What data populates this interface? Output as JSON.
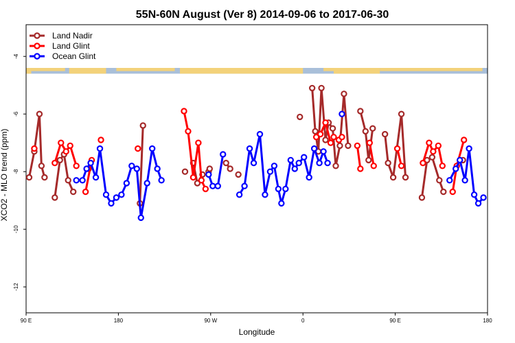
{
  "chart_data": {
    "type": "line",
    "title": "55N-60N August (Ver 8)   2014-09-06 to 2017-06-30",
    "xlabel": "Longitude",
    "ylabel": "XCO2 - MLO trend (ppm)",
    "xlim": [
      0,
      450
    ],
    "ylim": [
      -12.9,
      -2.9
    ],
    "x_ticks": [
      {
        "value": 0,
        "label": "90 E"
      },
      {
        "value": 90,
        "label": "180"
      },
      {
        "value": 180,
        "label": "90 W"
      },
      {
        "value": 270,
        "label": "0"
      },
      {
        "value": 360,
        "label": "90 E"
      },
      {
        "value": 450,
        "label": "180"
      }
    ],
    "y_ticks": [
      -12,
      -10,
      -8,
      -6,
      -4
    ],
    "legend_position": "top-left",
    "map_strip": {
      "y_range": [
        -4.4,
        -4.6
      ],
      "land_color": "#f3d27a",
      "ocean_color": "#a9bfd9"
    },
    "series": [
      {
        "name": "Land Nadir",
        "color": "#a52a2a",
        "segments": [
          [
            [
              3,
              -8.2
            ],
            [
              8,
              -7.3
            ],
            [
              13,
              -6.0
            ],
            [
              15,
              -7.8
            ],
            [
              18,
              -8.2
            ]
          ],
          [
            [
              28,
              -8.9
            ],
            [
              33,
              -7.6
            ],
            [
              37,
              -7.4
            ],
            [
              41,
              -8.3
            ],
            [
              46,
              -8.7
            ]
          ],
          [
            [
              61,
              -7.9
            ]
          ],
          [
            [
              111,
              -9.1
            ],
            [
              114,
              -6.4
            ]
          ],
          [
            [
              155,
              -8.0
            ]
          ],
          [
            [
              163,
              -7.7
            ],
            [
              167,
              -8.4
            ],
            [
              172,
              -8.1
            ]
          ],
          [
            [
              178,
              -8.0
            ],
            [
              179,
              -7.9
            ]
          ],
          [
            [
              195,
              -7.7
            ],
            [
              199,
              -7.9
            ]
          ],
          [
            [
              207,
              -8.1
            ]
          ],
          [
            [
              267,
              -6.1
            ]
          ],
          [
            [
              279,
              -5.1
            ],
            [
              282,
              -6.6
            ],
            [
              285,
              -7.3
            ],
            [
              288,
              -5.1
            ],
            [
              292,
              -6.9
            ],
            [
              295,
              -6.3
            ],
            [
              299,
              -6.5
            ],
            [
              302,
              -7.8
            ],
            [
              306,
              -7.1
            ],
            [
              310,
              -5.3
            ],
            [
              314,
              -7.1
            ]
          ],
          [
            [
              326,
              -5.9
            ],
            [
              331,
              -6.6
            ],
            [
              334,
              -7.6
            ],
            [
              338,
              -6.5
            ]
          ],
          [
            [
              350,
              -6.7
            ],
            [
              353,
              -7.7
            ],
            [
              358,
              -8.2
            ],
            [
              366,
              -6.0
            ],
            [
              370,
              -8.2
            ]
          ],
          [
            [
              386,
              -8.9
            ],
            [
              391,
              -7.6
            ],
            [
              396,
              -7.5
            ],
            [
              403,
              -8.3
            ],
            [
              407,
              -8.7
            ]
          ],
          [
            [
              426,
              -7.6
            ]
          ]
        ]
      },
      {
        "name": "Land Glint",
        "color": "#ff0000",
        "segments": [
          [
            [
              8,
              -7.2
            ]
          ],
          [
            [
              28,
              -7.7
            ],
            [
              34,
              -7.0
            ],
            [
              39,
              -7.3
            ],
            [
              43,
              -7.1
            ],
            [
              49,
              -7.8
            ]
          ],
          [
            [
              58,
              -8.7
            ],
            [
              64,
              -7.6
            ]
          ],
          [
            [
              73,
              -6.9
            ]
          ],
          [
            [
              109,
              -7.2
            ]
          ],
          [
            [
              154,
              -5.9
            ],
            [
              158,
              -6.6
            ],
            [
              163,
              -8.2
            ],
            [
              168,
              -7.0
            ],
            [
              171,
              -8.3
            ],
            [
              175,
              -8.6
            ]
          ],
          [
            [
              283,
              -6.8
            ],
            [
              287,
              -6.7
            ],
            [
              292,
              -6.3
            ],
            [
              297,
              -7.0
            ],
            [
              300,
              -6.8
            ],
            [
              305,
              -6.9
            ],
            [
              308,
              -6.8
            ]
          ],
          [
            [
              323,
              -7.1
            ],
            [
              326,
              -7.9
            ]
          ],
          [
            [
              335,
              -7.0
            ],
            [
              339,
              -7.8
            ]
          ],
          [
            [
              362,
              -7.2
            ],
            [
              366,
              -7.8
            ]
          ],
          [
            [
              387,
              -7.7
            ],
            [
              393,
              -7.0
            ],
            [
              397,
              -7.3
            ],
            [
              402,
              -7.1
            ],
            [
              406,
              -7.8
            ]
          ],
          [
            [
              416,
              -8.7
            ],
            [
              420,
              -7.8
            ],
            [
              427,
              -6.9
            ]
          ]
        ]
      },
      {
        "name": "Ocean Glint",
        "color": "#0000ff",
        "segments": [
          [
            [
              49,
              -8.3
            ],
            [
              55,
              -8.3
            ],
            [
              59,
              -7.9
            ],
            [
              63,
              -7.7
            ],
            [
              68,
              -8.2
            ],
            [
              72,
              -7.2
            ],
            [
              78,
              -8.8
            ],
            [
              83,
              -9.1
            ],
            [
              88,
              -8.9
            ],
            [
              93,
              -8.8
            ],
            [
              98,
              -8.4
            ],
            [
              103,
              -7.8
            ],
            [
              108,
              -7.9
            ],
            [
              112,
              -9.6
            ],
            [
              118,
              -8.4
            ],
            [
              123,
              -7.2
            ],
            [
              128,
              -7.9
            ],
            [
              132,
              -8.3
            ]
          ],
          [
            [
              178,
              -8.1
            ],
            [
              182,
              -8.5
            ],
            [
              187,
              -8.5
            ],
            [
              192,
              -7.4
            ]
          ],
          [
            [
              208,
              -8.8
            ],
            [
              213,
              -8.5
            ],
            [
              218,
              -7.2
            ],
            [
              222,
              -7.7
            ],
            [
              228,
              -6.7
            ],
            [
              233,
              -8.8
            ],
            [
              238,
              -8.0
            ],
            [
              242,
              -7.8
            ],
            [
              246,
              -8.6
            ],
            [
              249,
              -9.1
            ],
            [
              253,
              -8.6
            ],
            [
              258,
              -7.6
            ],
            [
              262,
              -7.9
            ],
            [
              266,
              -7.7
            ],
            [
              271,
              -7.5
            ],
            [
              276,
              -8.2
            ],
            [
              281,
              -7.2
            ],
            [
              286,
              -7.7
            ],
            [
              290,
              -7.3
            ],
            [
              294,
              -7.7
            ]
          ],
          [
            [
              308,
              -6.0
            ]
          ],
          [
            [
              413,
              -8.3
            ],
            [
              419,
              -7.9
            ],
            [
              423,
              -7.6
            ],
            [
              428,
              -8.3
            ],
            [
              432,
              -7.2
            ],
            [
              437,
              -8.8
            ],
            [
              441,
              -9.1
            ],
            [
              446,
              -8.9
            ]
          ]
        ]
      }
    ]
  }
}
